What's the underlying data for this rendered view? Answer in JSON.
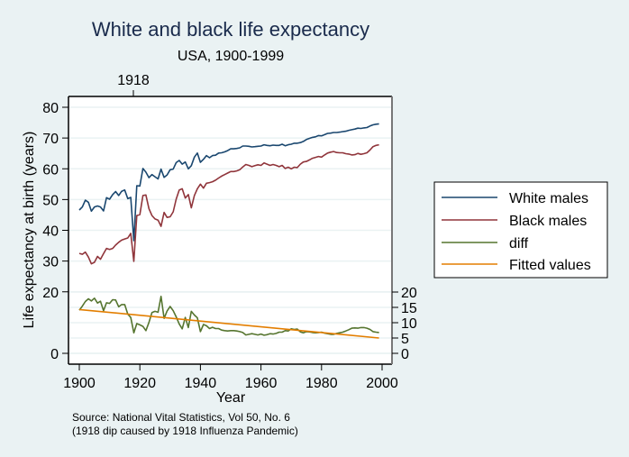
{
  "chart_data": {
    "type": "line",
    "title": "White and black life expectancy",
    "subtitle": "USA, 1900-1999",
    "xlabel": "Year",
    "ylabel": "Life expectancy at birth (years)",
    "top_axis_label": "1918",
    "top_axis_value": 1918,
    "note_lines": [
      "Source: National Vital Statistics, Vol 50, No. 6",
      "(1918 dip caused by 1918 Influenza Pandemic)"
    ],
    "xlim": [
      1900,
      2000
    ],
    "x_ticks": [
      1900,
      1920,
      1940,
      1960,
      1980,
      2000
    ],
    "y_left": {
      "ylim": [
        0,
        80
      ],
      "ticks": [
        0,
        20,
        30,
        40,
        50,
        60,
        70,
        80
      ]
    },
    "y_right": {
      "ylim": [
        0,
        20
      ],
      "ticks": [
        0,
        5,
        10,
        15,
        20
      ]
    },
    "grid": true,
    "legend": {
      "placement": "right",
      "entries": [
        "White males",
        "Black males",
        "diff",
        "Fitted values"
      ]
    },
    "colors": {
      "white": "#1a476f",
      "black": "#90353b",
      "diff": "#55752f",
      "fitted": "#e37e00",
      "title": "#1a2b4c",
      "background": "#eaf2f3",
      "plot": "#ffffff"
    },
    "x": [
      1900,
      1901,
      1902,
      1903,
      1904,
      1905,
      1906,
      1907,
      1908,
      1909,
      1910,
      1911,
      1912,
      1913,
      1914,
      1915,
      1916,
      1917,
      1918,
      1919,
      1920,
      1921,
      1922,
      1923,
      1924,
      1925,
      1926,
      1927,
      1928,
      1929,
      1930,
      1931,
      1932,
      1933,
      1934,
      1935,
      1936,
      1937,
      1938,
      1939,
      1940,
      1941,
      1942,
      1943,
      1944,
      1945,
      1946,
      1947,
      1948,
      1949,
      1950,
      1951,
      1952,
      1953,
      1954,
      1955,
      1956,
      1957,
      1958,
      1959,
      1960,
      1961,
      1962,
      1963,
      1964,
      1965,
      1966,
      1967,
      1968,
      1969,
      1970,
      1971,
      1972,
      1973,
      1974,
      1975,
      1976,
      1977,
      1978,
      1979,
      1980,
      1981,
      1982,
      1983,
      1984,
      1985,
      1986,
      1987,
      1988,
      1989,
      1990,
      1991,
      1992,
      1993,
      1994,
      1995,
      1996,
      1997,
      1998,
      1999
    ],
    "series": [
      {
        "name": "White males",
        "axis": "left",
        "values": [
          46.6,
          47.6,
          49.8,
          49.1,
          46.2,
          47.6,
          47.9,
          47.6,
          46.3,
          50.6,
          50.1,
          51.6,
          52.6,
          51.3,
          52.7,
          53.1,
          50.3,
          50.7,
          36.6,
          54.5,
          54.4,
          60.1,
          58.9,
          57.1,
          58.1,
          57.4,
          56.7,
          59.9,
          57.2,
          58.0,
          59.7,
          59.9,
          62.0,
          62.7,
          61.5,
          62.2,
          60.0,
          61.0,
          63.8,
          65.1,
          62.1,
          63.1,
          64.3,
          63.6,
          64.3,
          64.4,
          65.1,
          65.2,
          65.5,
          65.9,
          66.5,
          66.5,
          66.6,
          66.8,
          67.4,
          67.4,
          67.3,
          67.1,
          67.2,
          67.3,
          67.4,
          67.8,
          67.6,
          67.5,
          67.7,
          67.6,
          67.6,
          68.0,
          67.5,
          67.8,
          68.0,
          68.3,
          68.3,
          68.5,
          68.9,
          69.5,
          69.9,
          70.2,
          70.4,
          70.8,
          70.7,
          71.1,
          71.5,
          71.6,
          71.8,
          71.8,
          71.9,
          72.1,
          72.2,
          72.5,
          72.7,
          72.9,
          73.2,
          73.1,
          73.3,
          73.4,
          73.9,
          74.3,
          74.5,
          74.6
        ]
      },
      {
        "name": "Black males",
        "axis": "left",
        "values": [
          32.5,
          32.2,
          32.9,
          31.3,
          29.1,
          29.6,
          31.5,
          30.6,
          32.4,
          34.1,
          33.8,
          34.1,
          35.2,
          36.1,
          36.8,
          37.2,
          37.5,
          39.0,
          29.9,
          44.8,
          45.1,
          51.3,
          51.5,
          47.0,
          44.8,
          43.7,
          43.3,
          41.3,
          45.8,
          44.2,
          44.4,
          46.0,
          50.1,
          53.1,
          53.5,
          50.5,
          51.6,
          47.3,
          51.3,
          53.5,
          55.0,
          53.7,
          55.3,
          55.5,
          55.8,
          56.3,
          57.0,
          57.6,
          58.1,
          58.6,
          59.1,
          59.1,
          59.3,
          59.7,
          60.6,
          61.4,
          61.1,
          60.7,
          61.0,
          61.3,
          61.1,
          61.9,
          61.5,
          61.1,
          61.4,
          61.1,
          60.7,
          61.1,
          60.1,
          60.5,
          60.0,
          60.5,
          60.4,
          61.5,
          62.2,
          62.4,
          62.9,
          63.4,
          63.7,
          64.0,
          63.8,
          64.5,
          65.1,
          65.4,
          65.6,
          65.3,
          65.2,
          65.2,
          64.9,
          64.8,
          64.5,
          64.6,
          65.0,
          64.7,
          64.9,
          65.2,
          66.1,
          67.2,
          67.6,
          67.8
        ]
      },
      {
        "name": "diff",
        "axis": "right",
        "values": [
          14.1,
          15.4,
          16.9,
          17.8,
          17.1,
          18.0,
          16.4,
          17.0,
          13.9,
          16.5,
          16.3,
          17.5,
          17.4,
          15.2,
          15.9,
          15.9,
          12.8,
          11.7,
          6.7,
          9.7,
          9.3,
          8.8,
          7.4,
          10.1,
          13.3,
          13.7,
          13.4,
          18.6,
          11.4,
          13.8,
          15.3,
          13.9,
          11.9,
          9.6,
          8.0,
          11.7,
          8.4,
          13.7,
          12.5,
          11.6,
          7.1,
          9.4,
          9.0,
          8.1,
          8.5,
          8.1,
          8.1,
          7.6,
          7.4,
          7.3,
          7.4,
          7.4,
          7.3,
          7.1,
          6.8,
          6.0,
          6.2,
          6.4,
          6.2,
          6.0,
          6.3,
          5.9,
          6.1,
          6.4,
          6.3,
          6.5,
          6.9,
          6.9,
          7.4,
          7.3,
          8.0,
          7.8,
          7.9,
          7.0,
          6.7,
          7.1,
          7.0,
          6.8,
          6.7,
          6.8,
          6.9,
          6.6,
          6.4,
          6.2,
          6.2,
          6.5,
          6.7,
          6.9,
          7.3,
          7.7,
          8.2,
          8.3,
          8.2,
          8.4,
          8.4,
          8.2,
          7.8,
          7.1,
          6.9,
          6.8
        ]
      },
      {
        "name": "Fitted values",
        "axis": "right",
        "type": "linear",
        "start": {
          "x": 1900,
          "y": 14.3
        },
        "end": {
          "x": 1999,
          "y": 5.0
        }
      }
    ]
  }
}
